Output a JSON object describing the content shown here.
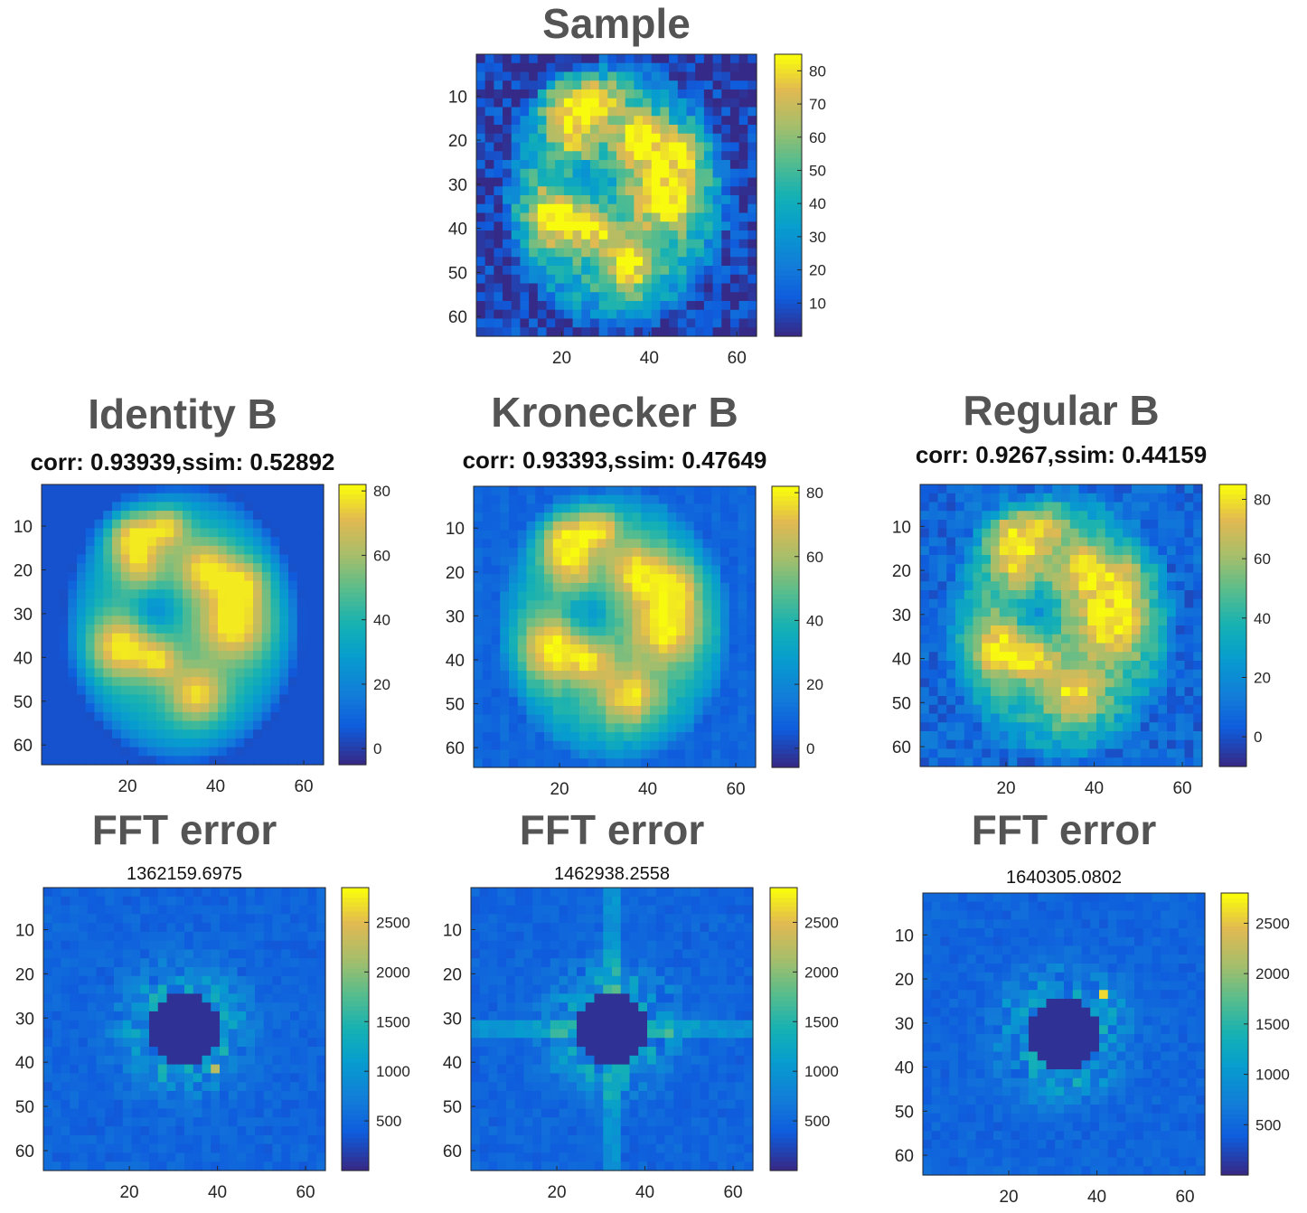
{
  "colors": {
    "colormap": "parula",
    "title": "#545454",
    "axis": "#262626",
    "background": "#ffffff"
  },
  "chart_data": [
    {
      "type": "heatmap",
      "title": "Sample",
      "subtitle": "",
      "image": "brain-slice",
      "grid_size": 64,
      "xticks": [
        "20",
        "40",
        "60"
      ],
      "yticks": [
        "10",
        "20",
        "30",
        "40",
        "50",
        "60"
      ],
      "clim": [
        0,
        85
      ],
      "colorbar_ticks": [
        "10",
        "20",
        "30",
        "40",
        "50",
        "60",
        "70",
        "80"
      ],
      "colorbar_tick_values": [
        10,
        20,
        30,
        40,
        50,
        60,
        70,
        80
      ]
    },
    {
      "type": "heatmap",
      "title": "Identity B",
      "subtitle": "corr: 0.93939,ssim: 0.52892",
      "image": "brain-reconstruction-smooth",
      "grid_size": 64,
      "xticks": [
        "20",
        "40",
        "60"
      ],
      "yticks": [
        "10",
        "20",
        "30",
        "40",
        "50",
        "60"
      ],
      "clim": [
        -5,
        82
      ],
      "colorbar_ticks": [
        "0",
        "20",
        "40",
        "60",
        "80"
      ],
      "colorbar_tick_values": [
        0,
        20,
        40,
        60,
        80
      ]
    },
    {
      "type": "heatmap",
      "title": "Kronecker B",
      "subtitle": "corr: 0.93393,ssim: 0.47649",
      "image": "brain-reconstruction-striped",
      "grid_size": 64,
      "xticks": [
        "20",
        "40",
        "60"
      ],
      "yticks": [
        "10",
        "20",
        "30",
        "40",
        "50",
        "60"
      ],
      "clim": [
        -6,
        82
      ],
      "colorbar_ticks": [
        "0",
        "20",
        "40",
        "60",
        "80"
      ],
      "colorbar_tick_values": [
        0,
        20,
        40,
        60,
        80
      ]
    },
    {
      "type": "heatmap",
      "title": "Regular B",
      "subtitle": "corr: 0.9267,ssim: 0.44159",
      "image": "brain-reconstruction-noisy",
      "grid_size": 64,
      "xticks": [
        "20",
        "40",
        "60"
      ],
      "yticks": [
        "10",
        "20",
        "30",
        "40",
        "50",
        "60"
      ],
      "clim": [
        -10,
        85
      ],
      "colorbar_ticks": [
        "0",
        "20",
        "40",
        "60",
        "80"
      ],
      "colorbar_tick_values": [
        0,
        20,
        40,
        60,
        80
      ]
    },
    {
      "type": "heatmap",
      "title": "FFT error",
      "subtitle": "1362159.6975",
      "image": "fft-error-masked-center",
      "grid_size": 64,
      "xticks": [
        "20",
        "40",
        "60"
      ],
      "yticks": [
        "10",
        "20",
        "30",
        "40",
        "50",
        "60"
      ],
      "clim": [
        0,
        2850
      ],
      "colorbar_ticks": [
        "500",
        "1000",
        "1500",
        "2000",
        "2500"
      ],
      "colorbar_tick_values": [
        500,
        1000,
        1500,
        2000,
        2500
      ]
    },
    {
      "type": "heatmap",
      "title": "FFT error",
      "subtitle": "1462938.2558",
      "image": "fft-error-masked-center-cross",
      "grid_size": 64,
      "xticks": [
        "20",
        "40",
        "60"
      ],
      "yticks": [
        "10",
        "20",
        "30",
        "40",
        "50",
        "60"
      ],
      "clim": [
        0,
        2850
      ],
      "colorbar_ticks": [
        "500",
        "1000",
        "1500",
        "2000",
        "2500"
      ],
      "colorbar_tick_values": [
        500,
        1000,
        1500,
        2000,
        2500
      ]
    },
    {
      "type": "heatmap",
      "title": "FFT error",
      "subtitle": "1640305.0802",
      "image": "fft-error-masked-center",
      "grid_size": 64,
      "xticks": [
        "20",
        "40",
        "60"
      ],
      "yticks": [
        "10",
        "20",
        "30",
        "40",
        "50",
        "60"
      ],
      "clim": [
        0,
        2800
      ],
      "colorbar_ticks": [
        "500",
        "1000",
        "1500",
        "2000",
        "2500"
      ],
      "colorbar_tick_values": [
        500,
        1000,
        1500,
        2000,
        2500
      ]
    }
  ]
}
